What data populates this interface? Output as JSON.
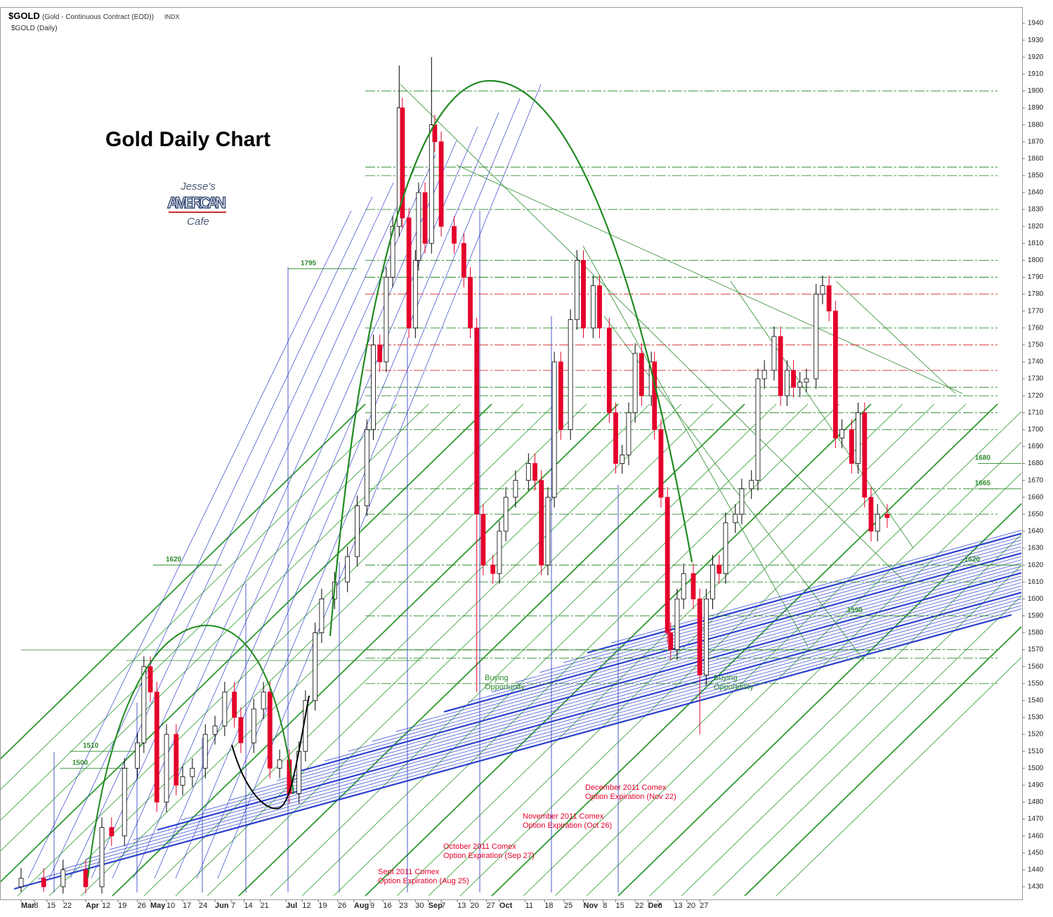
{
  "header": {
    "symbol": "$GOLD",
    "name": "(Gold - Continuous Contract (EOD))",
    "exchange": "INDX",
    "subtitle": "$GOLD (Daily)"
  },
  "logo": {
    "line1": "Jesse's",
    "line2": "AMERICAN",
    "line3": "Cafe"
  },
  "chart_data": {
    "type": "candlestick",
    "title": "Gold Daily Chart",
    "up_color": "#ffffff",
    "down_color": "#e4002b",
    "outline_color": "#000000",
    "x": [
      0,
      7,
      13,
      20,
      25,
      28,
      32,
      36,
      38,
      40,
      42,
      45,
      48,
      50,
      53,
      57,
      60,
      63,
      66,
      68,
      72,
      75,
      77,
      80,
      83,
      86,
      88,
      91,
      93,
      97,
      101,
      104,
      107,
      109,
      111,
      113,
      115,
      117,
      118,
      120,
      122,
      123,
      125,
      127,
      128,
      130,
      134,
      137,
      139,
      141,
      143,
      146,
      148,
      150,
      153,
      157,
      159,
      161,
      163,
      165,
      167,
      170,
      172,
      174,
      177,
      179,
      182,
      184,
      186,
      188,
      190,
      192,
      195,
      196,
      198,
      200,
      201,
      203,
      205,
      208,
      210,
      212,
      214,
      216,
      218,
      221,
      223,
      226,
      228,
      230,
      233,
      235,
      237,
      239,
      241,
      243,
      246,
      248,
      250,
      252,
      254,
      257,
      259,
      261,
      263,
      265,
      268
    ],
    "open": [
      1430,
      1435,
      1430,
      1440,
      1430,
      1465,
      1460,
      1500,
      1515,
      1560,
      1545,
      1480,
      1520,
      1490,
      1495,
      1500,
      1520,
      1525,
      1545,
      1530,
      1515,
      1535,
      1545,
      1500,
      1505,
      1485,
      1510,
      1540,
      1580,
      1600,
      1610,
      1625,
      1655,
      1700,
      1750,
      1740,
      1790,
      1820,
      1890,
      1825,
      1760,
      1800,
      1840,
      1810,
      1880,
      1870,
      1820,
      1810,
      1790,
      1760,
      1650,
      1620,
      1615,
      1640,
      1660,
      1670,
      1680,
      1670,
      1620,
      1660,
      1740,
      1700,
      1765,
      1800,
      1760,
      1785,
      1760,
      1710,
      1680,
      1685,
      1710,
      1745,
      1720,
      1740,
      1700,
      1660,
      1580,
      1570,
      1600,
      1615,
      1600,
      1555,
      1600,
      1620,
      1615,
      1645,
      1650,
      1665,
      1670,
      1730,
      1735,
      1755,
      1720,
      1735,
      1725,
      1728,
      1730,
      1780,
      1785,
      1770,
      1695,
      1700,
      1680,
      1710,
      1660,
      1640,
      1650
    ],
    "high": [
      1441,
      1441,
      1446,
      1446,
      1471,
      1471,
      1506,
      1521,
      1566,
      1566,
      1551,
      1526,
      1526,
      1501,
      1506,
      1526,
      1531,
      1551,
      1551,
      1536,
      1541,
      1551,
      1551,
      1511,
      1511,
      1516,
      1546,
      1586,
      1606,
      1616,
      1631,
      1661,
      1706,
      1756,
      1756,
      1796,
      1826,
      1915,
      1896,
      1831,
      1806,
      1846,
      1846,
      1920,
      1886,
      1876,
      1826,
      1816,
      1796,
      1766,
      1656,
      1626,
      1646,
      1666,
      1676,
      1686,
      1686,
      1676,
      1666,
      1746,
      1746,
      1771,
      1806,
      1806,
      1791,
      1791,
      1766,
      1716,
      1691,
      1716,
      1751,
      1751,
      1746,
      1746,
      1706,
      1666,
      1586,
      1606,
      1621,
      1621,
      1606,
      1606,
      1626,
      1626,
      1651,
      1656,
      1671,
      1676,
      1736,
      1741,
      1761,
      1761,
      1741,
      1741,
      1734,
      1736,
      1786,
      1791,
      1791,
      1776,
      1706,
      1706,
      1716,
      1716,
      1666,
      1656,
      1656
    ],
    "low": [
      1427,
      1427,
      1426,
      1426,
      1426,
      1454,
      1454,
      1494,
      1509,
      1539,
      1474,
      1474,
      1484,
      1484,
      1489,
      1494,
      1514,
      1519,
      1524,
      1509,
      1509,
      1529,
      1494,
      1494,
      1479,
      1479,
      1504,
      1534,
      1574,
      1594,
      1604,
      1619,
      1649,
      1694,
      1734,
      1734,
      1784,
      1814,
      1819,
      1754,
      1754,
      1794,
      1804,
      1804,
      1864,
      1814,
      1804,
      1784,
      1754,
      1545,
      1614,
      1609,
      1609,
      1634,
      1654,
      1664,
      1664,
      1614,
      1614,
      1654,
      1694,
      1694,
      1759,
      1754,
      1754,
      1754,
      1704,
      1674,
      1674,
      1679,
      1704,
      1714,
      1714,
      1694,
      1654,
      1574,
      1564,
      1564,
      1594,
      1594,
      1520,
      1549,
      1594,
      1609,
      1609,
      1639,
      1644,
      1659,
      1664,
      1724,
      1729,
      1714,
      1714,
      1719,
      1719,
      1722,
      1724,
      1774,
      1764,
      1689,
      1689,
      1674,
      1674,
      1654,
      1634,
      1634,
      1642
    ],
    "close": [
      1435,
      1430,
      1440,
      1430,
      1465,
      1460,
      1500,
      1515,
      1560,
      1545,
      1480,
      1520,
      1490,
      1495,
      1500,
      1520,
      1525,
      1545,
      1530,
      1515,
      1535,
      1545,
      1500,
      1505,
      1485,
      1510,
      1540,
      1580,
      1600,
      1610,
      1625,
      1655,
      1700,
      1750,
      1740,
      1790,
      1820,
      1890,
      1825,
      1760,
      1800,
      1840,
      1810,
      1880,
      1870,
      1820,
      1810,
      1790,
      1760,
      1650,
      1620,
      1615,
      1640,
      1660,
      1670,
      1680,
      1670,
      1620,
      1660,
      1740,
      1700,
      1765,
      1800,
      1760,
      1785,
      1760,
      1710,
      1680,
      1685,
      1710,
      1745,
      1720,
      1740,
      1700,
      1660,
      1580,
      1570,
      1600,
      1615,
      1600,
      1555,
      1600,
      1620,
      1615,
      1645,
      1650,
      1665,
      1670,
      1730,
      1735,
      1755,
      1720,
      1735,
      1725,
      1728,
      1730,
      1780,
      1785,
      1770,
      1695,
      1700,
      1680,
      1710,
      1660,
      1640,
      1650,
      1648
    ],
    "xlim": [
      -5,
      303
    ],
    "xticks": [
      {
        "value": 0,
        "label": "Mar"
      },
      {
        "value": 4,
        "label": "8"
      },
      {
        "value": 8,
        "label": "15"
      },
      {
        "value": 13,
        "label": "22"
      },
      {
        "value": 20,
        "label": "Apr"
      },
      {
        "value": 25,
        "label": "12"
      },
      {
        "value": 30,
        "label": "19"
      },
      {
        "value": 36,
        "label": "26"
      },
      {
        "value": 40,
        "label": "May"
      },
      {
        "value": 45,
        "label": "10"
      },
      {
        "value": 50,
        "label": "17"
      },
      {
        "value": 55,
        "label": "24"
      },
      {
        "value": 60,
        "label": "Jun"
      },
      {
        "value": 65,
        "label": "7"
      },
      {
        "value": 69,
        "label": "14"
      },
      {
        "value": 74,
        "label": "21"
      },
      {
        "value": 82,
        "label": "Jul"
      },
      {
        "value": 87,
        "label": "12"
      },
      {
        "value": 92,
        "label": "19"
      },
      {
        "value": 98,
        "label": "26"
      },
      {
        "value": 103,
        "label": "Aug"
      },
      {
        "value": 108,
        "label": "9"
      },
      {
        "value": 112,
        "label": "16"
      },
      {
        "value": 117,
        "label": "23"
      },
      {
        "value": 122,
        "label": "30"
      },
      {
        "value": 126,
        "label": "Sep"
      },
      {
        "value": 130,
        "label": "7"
      },
      {
        "value": 135,
        "label": "13"
      },
      {
        "value": 139,
        "label": "20"
      },
      {
        "value": 144,
        "label": "27"
      },
      {
        "value": 148,
        "label": "Oct"
      },
      {
        "value": 156,
        "label": "11"
      },
      {
        "value": 162,
        "label": "18"
      },
      {
        "value": 168,
        "label": "25"
      },
      {
        "value": 174,
        "label": "Nov"
      },
      {
        "value": 180,
        "label": "8"
      },
      {
        "value": 184,
        "label": "15"
      },
      {
        "value": 190,
        "label": "22"
      },
      {
        "value": 194,
        "label": "Dec"
      },
      {
        "value": 197,
        "label": "6"
      },
      {
        "value": 202,
        "label": "13"
      },
      {
        "value": 206,
        "label": "20"
      },
      {
        "value": 210,
        "label": "27"
      }
    ],
    "ylim": [
      1425,
      1945
    ],
    "yticks": [
      1430,
      1440,
      1450,
      1460,
      1470,
      1480,
      1490,
      1500,
      1510,
      1520,
      1530,
      1540,
      1550,
      1560,
      1570,
      1580,
      1590,
      1600,
      1610,
      1620,
      1630,
      1640,
      1650,
      1660,
      1670,
      1680,
      1690,
      1700,
      1710,
      1720,
      1730,
      1740,
      1750,
      1760,
      1770,
      1780,
      1790,
      1800,
      1810,
      1820,
      1830,
      1840,
      1850,
      1860,
      1870,
      1880,
      1890,
      1900,
      1910,
      1920,
      1930,
      1940
    ],
    "level_lines": [
      1900,
      1855,
      1850,
      1830,
      1800,
      1790,
      1780,
      1760,
      1750,
      1735,
      1725,
      1720,
      1710,
      1700,
      1665,
      1650,
      1620,
      1610,
      1590,
      1570,
      1565,
      1550
    ],
    "level_colors": [
      "#2e8b2e",
      "#2e8b2e",
      "#2e8b2e",
      "#2e8b2e",
      "#2e8b2e",
      "#2e8b2e",
      "#d43030",
      "#2e8b2e",
      "#d43030",
      "#d43030",
      "#2e8b2e",
      "#2e8b2e",
      "#2e8b2e",
      "#2e8b2e",
      "#2e8b2e",
      "#2e8b2e",
      "#2e8b2e",
      "#2e8b2e",
      "#2e8b2e",
      "#2e8b2e",
      "#2e8b2e",
      "#2e8b2e"
    ],
    "level_labels": [
      1795,
      1620,
      1510,
      1500,
      1680,
      1665,
      1620,
      1590
    ],
    "level_label_color": "#2e8b2e",
    "annotations": [
      {
        "lines": [
          "Buying",
          "Opportunity"
        ],
        "color": "#2e8b2e"
      },
      {
        "lines": [
          "Buying",
          "Opportunity"
        ],
        "color": "#2e8b2e"
      },
      {
        "lines": [
          "Sept 2011 Comex",
          "Option Expiration (Aug 25)"
        ],
        "color": "#e4002b"
      },
      {
        "lines": [
          "October 2011 Comex",
          "Option Expiration (Sep 27)"
        ],
        "color": "#e4002b"
      },
      {
        "lines": [
          "November 2011 Comex",
          "Option Expiration  (Oct 26)"
        ],
        "color": "#e4002b"
      },
      {
        "lines": [
          "December 2011 Comex",
          "Option Expiration (Nov 22)"
        ],
        "color": "#e4002b"
      }
    ]
  }
}
